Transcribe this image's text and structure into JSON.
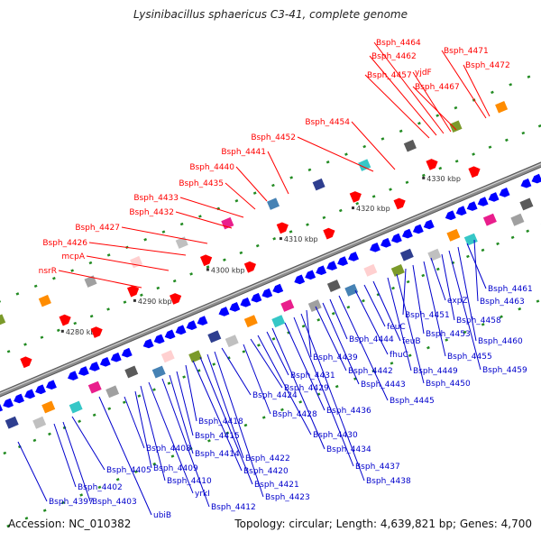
{
  "title": "Lysinibacillus sphaericus C3-41, complete genome",
  "footer": {
    "accession": "Accession: NC_010382",
    "topology": "Topology: circular; Length: 4,639,821 bp; Genes: 4,700"
  },
  "colors": {
    "backbone": "#8c8c8c",
    "forward_gene": "#ff0000",
    "reverse_gene": "#0000ff",
    "forward_label": "#ff0000",
    "reverse_label": "#0000cc",
    "tick": "#228b22"
  },
  "scale_labels": [
    "4280 kbp",
    "4290 kbp",
    "4300 kbp",
    "4310 kbp",
    "4320 kbp",
    "4330 kbp"
  ],
  "forward_labels": [
    "nsrR",
    "mcpA",
    "Bsph_4426",
    "Bsph_4427",
    "Bsph_4432",
    "Bsph_4433",
    "Bsph_4435",
    "Bsph_4440",
    "Bsph_4441",
    "Bsph_4452",
    "Bsph_4454",
    "Bsph_4457",
    "Bsph_4462",
    "Bsph_4464",
    "yjdF",
    "Bsph_4467",
    "Bsph_4471",
    "Bsph_4472"
  ],
  "reverse_labels": [
    "Bsph_4397",
    "Bsph_4402",
    "Bsph_4403",
    "Bsph_4405",
    "ubiB",
    "Bsph_4408",
    "Bsph_4409",
    "Bsph_4410",
    "yrkI",
    "Bsph_4412",
    "Bsph_4414",
    "Bsph_4415",
    "Bsph_4418",
    "Bsph_4420",
    "Bsph_4421",
    "Bsph_4422",
    "Bsph_4423",
    "Bsph_4424",
    "Bsph_4428",
    "Bsph_4429",
    "Bsph_4430",
    "Bsph_4431",
    "Bsph_4434",
    "Bsph_4436",
    "Bsph_4437",
    "Bsph_4438",
    "Bsph_4439",
    "Bsph_4442",
    "Bsph_4443",
    "Bsph_4444",
    "Bsph_4445",
    "fhuC",
    "feuC",
    "feuB",
    "Bsph_4449",
    "Bsph_4450",
    "Bsph_4451",
    "Bsph_4453",
    "Bsph_4455",
    "expZ",
    "Bsph_4458",
    "Bsph_4459",
    "Bsph_4460",
    "Bsph_4461",
    "Bsph_4463"
  ]
}
